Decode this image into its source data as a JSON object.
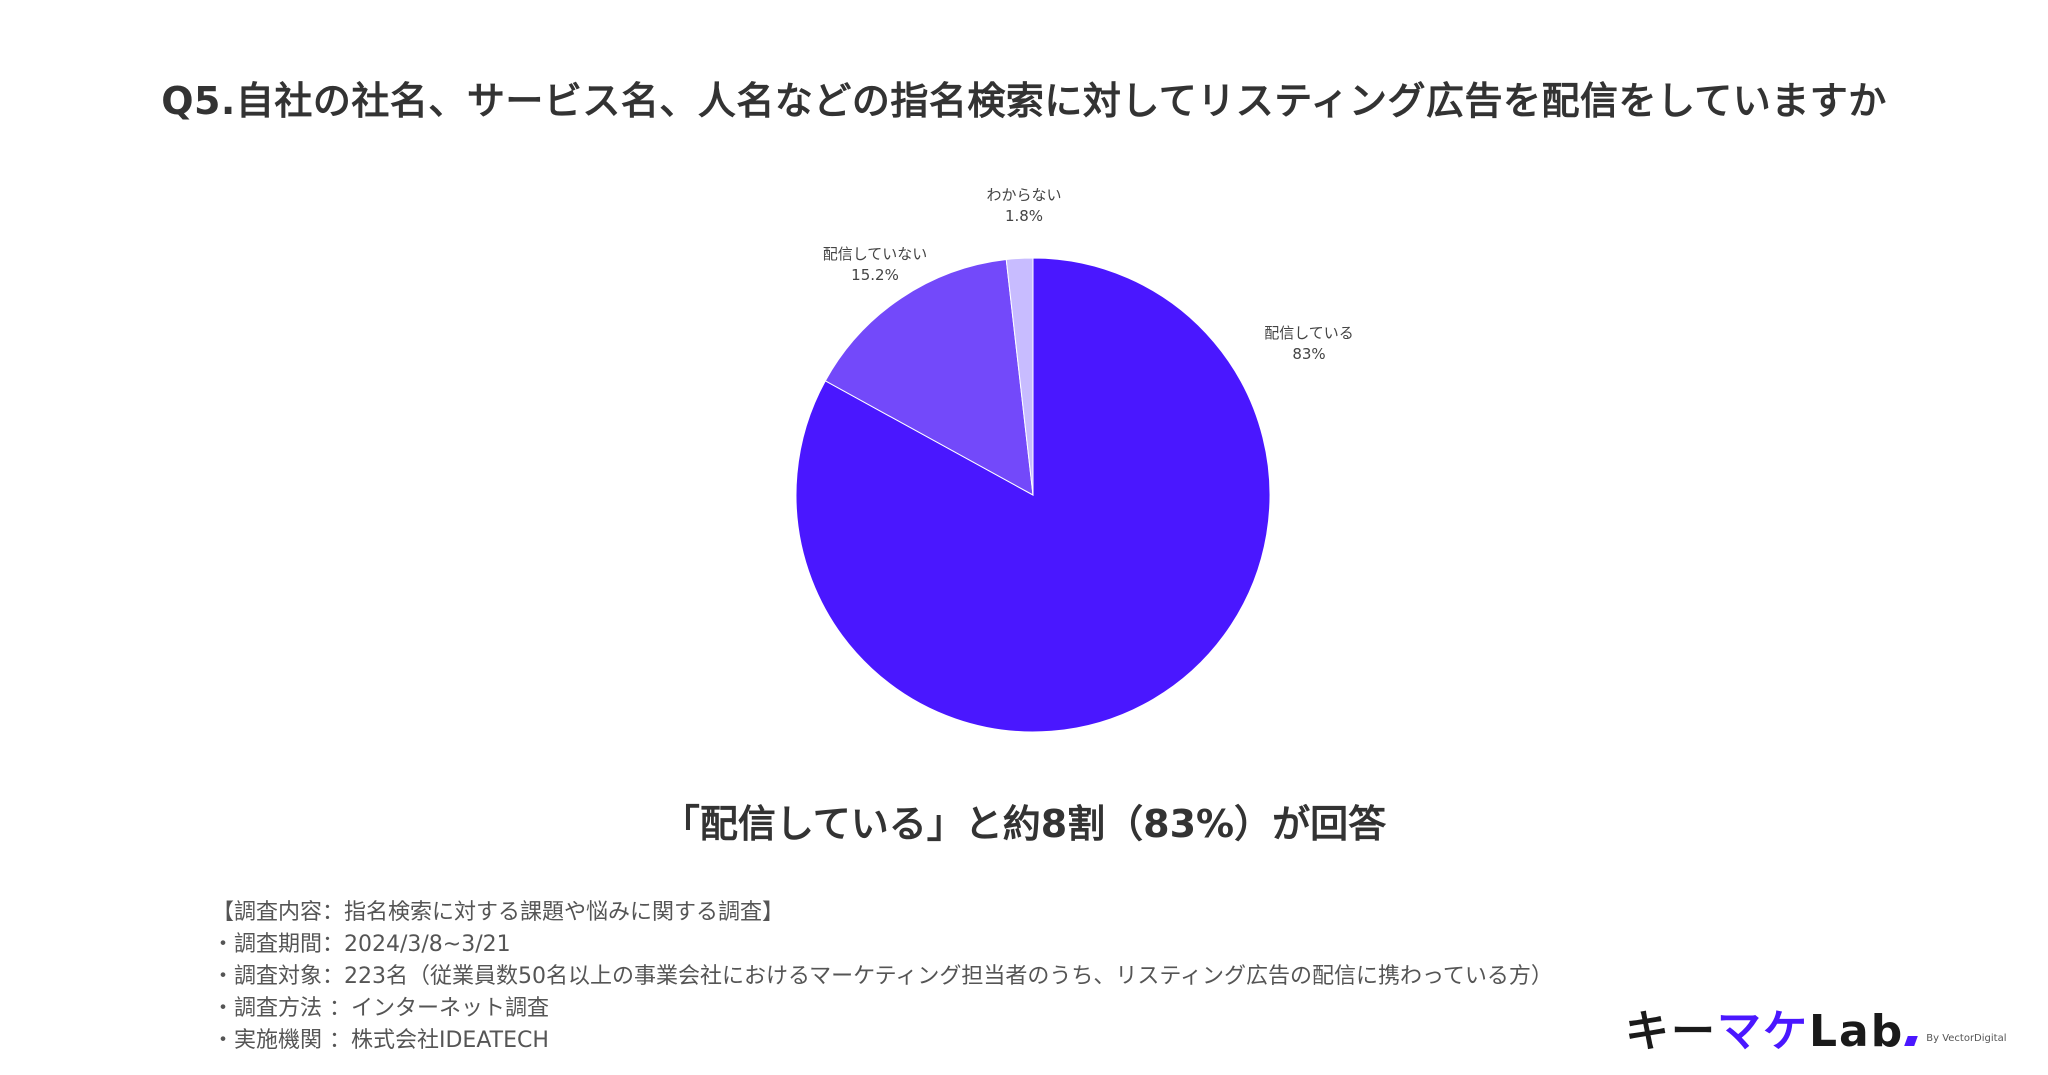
{
  "title": "Q5.自社の社名、サービス名、人名などの指名検索に対してリスティング広告を配信をしていますか",
  "summary": "「配信している」と約8割（83%）が回答",
  "notes": [
    "【調査内容：指名検索に対する課題や悩みに関する調査】",
    "・調査期間：2024/3/8~3/21",
    "・調査対象：223名（従業員数50名以上の事業会社におけるマーケティング担当者のうち、リスティング広告の配信に携わっている方）",
    "・調査方法 ：インターネット調査",
    "・実施機関 ：株式会社IDEATECH"
  ],
  "logo": {
    "part1": "キー",
    "part2": "マケ",
    "part3": "Lab",
    "byline": "By VectorDigital"
  },
  "chart_data": {
    "type": "pie",
    "title": "Q5.自社の社名、サービス名、人名などの指名検索に対してリスティング広告を配信をしていますか",
    "start_angle": "12 o'clock",
    "direction": "clockwise",
    "slices": [
      {
        "label": "配信している",
        "value": 83,
        "display": "83%",
        "color": "#4a17ff"
      },
      {
        "label": "配信していない",
        "value": 15.2,
        "display": "15.2%",
        "color": "#7349fa"
      },
      {
        "label": "わからない",
        "value": 1.8,
        "display": "1.8%",
        "color": "#c8bcff"
      }
    ]
  }
}
